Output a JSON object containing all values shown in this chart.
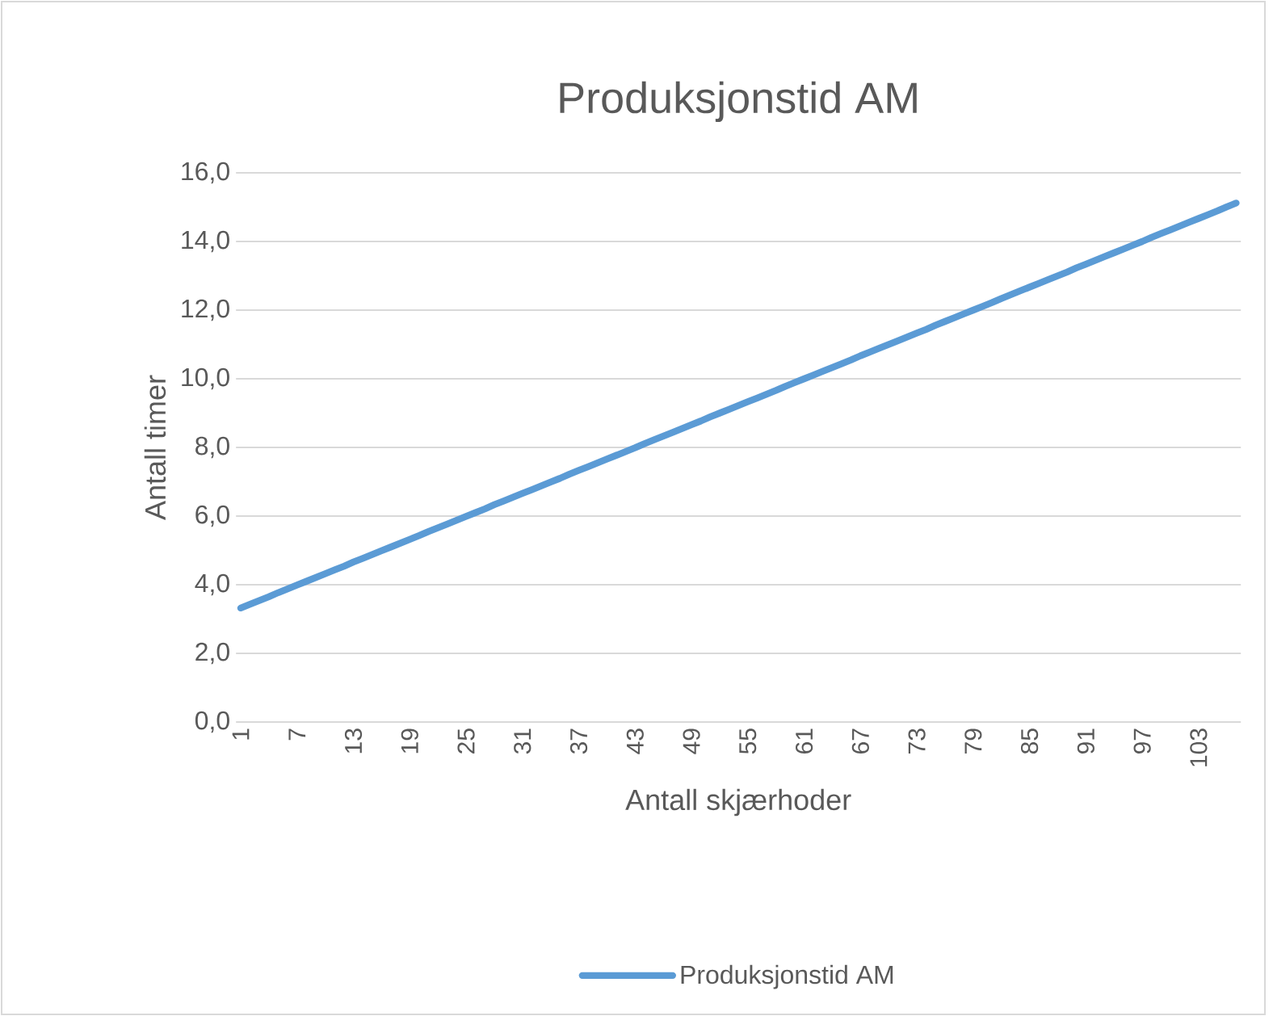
{
  "chart_data": {
    "type": "line",
    "title": "Produksjonstid AM",
    "xlabel": "Antall skjærhoder",
    "ylabel": "Antall timer",
    "categories": [
      "1",
      null,
      null,
      null,
      null,
      null,
      "7",
      null,
      null,
      null,
      null,
      null,
      "13",
      null,
      null,
      null,
      null,
      null,
      "19",
      null,
      null,
      null,
      null,
      null,
      "25",
      null,
      null,
      null,
      null,
      null,
      "31",
      null,
      null,
      null,
      null,
      null,
      "37",
      null,
      null,
      null,
      null,
      null,
      "43",
      null,
      null,
      null,
      null,
      null,
      "49",
      null,
      null,
      null,
      null,
      null,
      "55",
      null,
      null,
      null,
      null,
      null,
      "61",
      null,
      null,
      null,
      null,
      null,
      "67",
      null,
      null,
      null,
      null,
      null,
      "73",
      null,
      null,
      null,
      null,
      null,
      "79",
      null,
      null,
      null,
      null,
      null,
      "85",
      null,
      null,
      null,
      null,
      null,
      "91",
      null,
      null,
      null,
      null,
      null,
      "97",
      null,
      null,
      null,
      null,
      null,
      "103",
      null,
      null,
      null,
      null
    ],
    "series": [
      {
        "name": "Produksjonstid AM",
        "color": "#5b9bd5",
        "values": [
          3.32,
          3.43,
          3.54,
          3.65,
          3.77,
          3.88,
          3.99,
          4.1,
          4.21,
          4.32,
          4.43,
          4.54,
          4.66,
          4.77,
          4.88,
          4.99,
          5.1,
          5.21,
          5.32,
          5.43,
          5.55,
          5.66,
          5.77,
          5.88,
          5.99,
          6.1,
          6.21,
          6.33,
          6.44,
          6.55,
          6.66,
          6.77,
          6.88,
          6.99,
          7.1,
          7.22,
          7.33,
          7.44,
          7.55,
          7.66,
          7.77,
          7.88,
          7.99,
          8.11,
          8.22,
          8.33,
          8.44,
          8.55,
          8.66,
          8.77,
          8.89,
          9.0,
          9.11,
          9.22,
          9.33,
          9.44,
          9.55,
          9.66,
          9.78,
          9.89,
          10.0,
          10.11,
          10.22,
          10.33,
          10.44,
          10.55,
          10.67,
          10.78,
          10.89,
          11.0,
          11.11,
          11.22,
          11.33,
          11.44,
          11.56,
          11.67,
          11.78,
          11.89,
          12.0,
          12.11,
          12.22,
          12.34,
          12.45,
          12.56,
          12.67,
          12.78,
          12.89,
          13.0,
          13.11,
          13.23,
          13.34,
          13.45,
          13.56,
          13.67,
          13.78,
          13.89,
          14.0,
          14.12,
          14.23,
          14.34,
          14.45,
          14.56,
          14.67,
          14.78,
          14.89,
          15.01,
          15.12
        ]
      }
    ],
    "ylim": [
      0,
      16
    ],
    "yticks": [
      {
        "value": 0,
        "label": "0,0"
      },
      {
        "value": 2,
        "label": "2,0"
      },
      {
        "value": 4,
        "label": "4,0"
      },
      {
        "value": 6,
        "label": "6,0"
      },
      {
        "value": 8,
        "label": "8,0"
      },
      {
        "value": 10,
        "label": "10,0"
      },
      {
        "value": 12,
        "label": "12,0"
      },
      {
        "value": 14,
        "label": "14,0"
      },
      {
        "value": 16,
        "label": "16,0"
      }
    ],
    "grid": "y",
    "legend": "bottom",
    "marker": "none",
    "line_style": "solid"
  }
}
